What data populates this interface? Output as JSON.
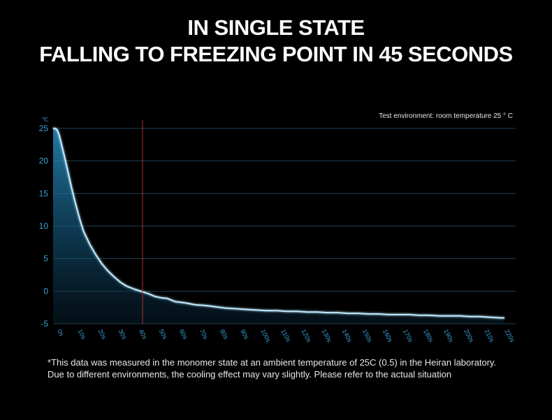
{
  "header": {
    "line1": "IN SINGLE STATE",
    "line2": "FALLING TO FREEZING POINT IN 45 SECONDS"
  },
  "environment_note": "Test environment: room temperature 25 ° C",
  "footnote": {
    "line1": "*This data was measured in the monomer state at an ambient temperature of 25C (0.5) in the Heiran laboratory.",
    "line2": "Due to different environments, the cooling effect may vary slightly. Please refer to the actual situation"
  },
  "colors": {
    "background": "#000000",
    "grid": "#1f3f55",
    "curve": "#bfeaff",
    "fill_top": "#2a8fc0",
    "marker": "#b03030",
    "tick": "#3aa2d2"
  },
  "chart_data": {
    "type": "area",
    "ylabel": "℃",
    "ylim": [
      -5,
      25
    ],
    "yticks": [
      "25",
      "20",
      "15",
      "10",
      "5",
      "0",
      "-5"
    ],
    "ytick_values": [
      25,
      20,
      15,
      10,
      5,
      0,
      -5
    ],
    "xticks": [
      "0s",
      "10s",
      "20s",
      "30s",
      "40s",
      "50s",
      "60s",
      "70s",
      "80s",
      "90s",
      "100s",
      "110s",
      "120s",
      "130s",
      "140s",
      "150s",
      "160s",
      "170s",
      "180s",
      "190s",
      "200s",
      "210s",
      "220s"
    ],
    "xlim": [
      0,
      222
    ],
    "marker_x": 44,
    "grid": true,
    "series": [
      {
        "x": [
          0,
          1,
          2,
          3,
          5,
          7,
          9,
          11,
          13,
          15,
          18,
          21,
          24,
          27,
          30,
          33,
          36,
          40,
          44,
          47,
          50,
          53,
          56,
          60,
          65,
          70,
          75,
          80,
          85,
          90,
          95,
          100,
          105,
          110,
          115,
          120,
          125,
          130,
          135,
          140,
          145,
          150,
          155,
          160,
          165,
          170,
          175,
          180,
          185,
          190,
          195,
          200,
          205,
          210,
          215,
          220,
          222
        ],
        "y": [
          25,
          25,
          24.8,
          24,
          21.5,
          18.8,
          16,
          13.5,
          11.2,
          9.2,
          7.2,
          5.6,
          4.2,
          3.1,
          2.2,
          1.4,
          0.8,
          0.3,
          -0.1,
          -0.4,
          -0.8,
          -1,
          -1.1,
          -1.6,
          -1.8,
          -2.1,
          -2.2,
          -2.4,
          -2.6,
          -2.7,
          -2.8,
          -2.9,
          -3,
          -3,
          -3.1,
          -3.1,
          -3.2,
          -3.2,
          -3.3,
          -3.3,
          -3.4,
          -3.4,
          -3.5,
          -3.5,
          -3.6,
          -3.6,
          -3.6,
          -3.7,
          -3.7,
          -3.8,
          -3.8,
          -3.8,
          -3.9,
          -3.9,
          -4,
          -4.1,
          -4.1
        ]
      }
    ]
  }
}
